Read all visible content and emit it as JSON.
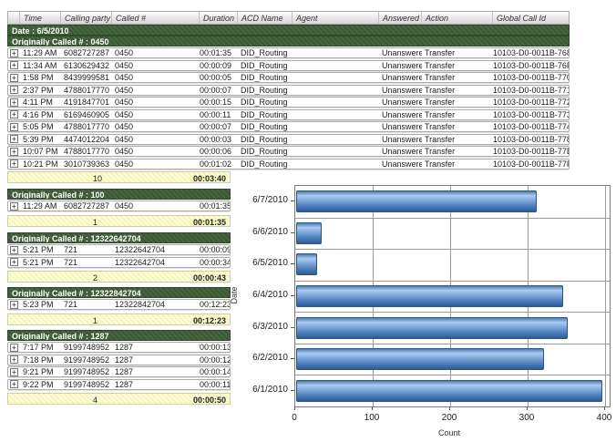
{
  "report": {
    "columns": [
      "Time",
      "Calling party #",
      "Called #",
      "Duration",
      "ACD Name",
      "Agent",
      "Answered",
      "Action",
      "Global Call Id"
    ],
    "expand_glyph": "+",
    "date_group": {
      "label": "Date : 6/5/2010",
      "called_group": {
        "label": "Originally Called # : 0450",
        "rows": [
          {
            "time": "11:29 AM",
            "calling_party": "6082727287",
            "called": "0450",
            "duration": "00:01:35",
            "acd_name": "DID_Routing",
            "agent": "",
            "answered": "Unanswered",
            "action": "Transfer",
            "global_call_id": "10103-D0-0011B-768"
          },
          {
            "time": "11:34 AM",
            "calling_party": "6130629432",
            "called": "0450",
            "duration": "00:00:09",
            "acd_name": "DID_Routing",
            "agent": "",
            "answered": "Unanswered",
            "action": "Transfer",
            "global_call_id": "10103-D0-0011B-76F"
          },
          {
            "time": "1:58 PM",
            "calling_party": "8439999581",
            "called": "0450",
            "duration": "00:00:05",
            "acd_name": "DID_Routing",
            "agent": "",
            "answered": "Unanswered",
            "action": "Transfer",
            "global_call_id": "10103-D0-0011B-770"
          },
          {
            "time": "2:37 PM",
            "calling_party": "4788017770",
            "called": "0450",
            "duration": "00:00:07",
            "acd_name": "DID_Routing",
            "agent": "",
            "answered": "Unanswered",
            "action": "Transfer",
            "global_call_id": "10103-D0-0011B-771"
          },
          {
            "time": "4:11 PM",
            "calling_party": "4191847701",
            "called": "0450",
            "duration": "00:00:15",
            "acd_name": "DID_Routing",
            "agent": "",
            "answered": "Unanswered",
            "action": "Transfer",
            "global_call_id": "10103-D0-0011B-772"
          },
          {
            "time": "4:16 PM",
            "calling_party": "6169460905",
            "called": "0450",
            "duration": "00:00:11",
            "acd_name": "DID_Routing",
            "agent": "",
            "answered": "Unanswered",
            "action": "Transfer",
            "global_call_id": "10103-D0-0011B-773"
          },
          {
            "time": "5:05 PM",
            "calling_party": "4788017770",
            "called": "0450",
            "duration": "00:00:07",
            "acd_name": "DID_Routing",
            "agent": "",
            "answered": "Unanswered",
            "action": "Transfer",
            "global_call_id": "10103-D0-0011B-774"
          },
          {
            "time": "5:39 PM",
            "calling_party": "4474012204",
            "called": "0450",
            "duration": "00:00:03",
            "acd_name": "DID_Routing",
            "agent": "",
            "answered": "Unanswered",
            "action": "Transfer",
            "global_call_id": "10103-D0-0011B-778"
          },
          {
            "time": "10:07 PM",
            "calling_party": "4788017770",
            "called": "0450",
            "duration": "00:00:06",
            "acd_name": "DID_Routing",
            "agent": "",
            "answered": "Unanswered",
            "action": "Transfer",
            "global_call_id": "10103-D0-0011B-77E"
          },
          {
            "time": "10:21 PM",
            "calling_party": "3010739363",
            "called": "0450",
            "duration": "00:01:02",
            "acd_name": "DID_Routing",
            "agent": "",
            "answered": "Unanswered",
            "action": "Transfer",
            "global_call_id": "10103-D0-0011B-77F"
          }
        ],
        "summary": {
          "count": "10",
          "total_duration": "00:03:40"
        }
      }
    },
    "sub_groups": [
      {
        "label": "Originally Called # : 100",
        "rows": [
          {
            "time": "11:29 AM",
            "calling_party": "6082727287",
            "called": "0450",
            "duration": "00:01:35"
          }
        ],
        "summary": {
          "count": "1",
          "total_duration": "00:01:35"
        }
      },
      {
        "label": "Originally Called # : 12322642704",
        "rows": [
          {
            "time": "5:21 PM",
            "calling_party": "721",
            "called": "12322642704",
            "duration": "00:00:09"
          },
          {
            "time": "5:21 PM",
            "calling_party": "721",
            "called": "12322642704",
            "duration": "00:00:34"
          }
        ],
        "summary": {
          "count": "2",
          "total_duration": "00:00:43"
        }
      },
      {
        "label": "Originally Called # : 12322842704",
        "rows": [
          {
            "time": "5:23 PM",
            "calling_party": "721",
            "called": "12322842704",
            "duration": "00:12:23"
          }
        ],
        "summary": {
          "count": "1",
          "total_duration": "00:12:23"
        }
      },
      {
        "label": "Originally Called # : 1287",
        "rows": [
          {
            "time": "7:17 PM",
            "calling_party": "9199748952",
            "called": "1287",
            "duration": "00:00:13"
          },
          {
            "time": "7:18 PM",
            "calling_party": "9199748952",
            "called": "1287",
            "duration": "00:00:12"
          },
          {
            "time": "9:21 PM",
            "calling_party": "9199748952",
            "called": "1287",
            "duration": "00:00:14"
          },
          {
            "time": "9:22 PM",
            "calling_party": "9199748952",
            "called": "1287",
            "duration": "00:00:11"
          }
        ],
        "summary": {
          "count": "4",
          "total_duration": "00:00:50"
        }
      }
    ]
  },
  "chart_data": {
    "type": "bar",
    "orientation": "horizontal",
    "title": "",
    "categories": [
      "6/7/2010",
      "6/6/2010",
      "6/5/2010",
      "6/4/2010",
      "6/3/2010",
      "6/2/2010",
      "6/1/2010"
    ],
    "values": [
      310,
      33,
      27,
      345,
      350,
      320,
      395
    ],
    "xlabel": "Count",
    "ylabel": "Date",
    "xlim": [
      0,
      400
    ],
    "xticks": [
      0,
      100,
      200,
      300,
      400
    ],
    "grid": true,
    "legend": "none",
    "bar_colors": {
      "top": "#3a6ba6",
      "highlight": "#a9cbee",
      "bottom": "#2b5590"
    }
  }
}
